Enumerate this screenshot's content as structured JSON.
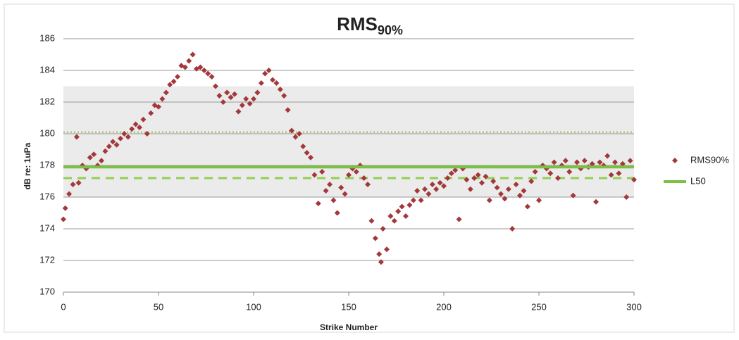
{
  "chart_data": {
    "type": "scatter",
    "title": "RMS",
    "title_subscript": "90%",
    "x_label": "Strike Number",
    "y_label": "dB re: 1uPa",
    "xlim": [
      0,
      300
    ],
    "xticks": [
      0,
      50,
      100,
      150,
      200,
      250,
      300
    ],
    "ylim": [
      170,
      186
    ],
    "yticks": [
      170,
      172,
      174,
      176,
      178,
      180,
      182,
      184,
      186
    ],
    "grid": true,
    "shaded_range": [
      176,
      183
    ],
    "reference_lines": [
      {
        "value": 180.1,
        "style": "dotted",
        "color": "#9bbb59"
      },
      {
        "value": 177.2,
        "style": "dashed",
        "color": "#92d050"
      }
    ],
    "series": [
      {
        "name": "RMS90%",
        "color": "#a3383a",
        "x": [
          0,
          1,
          3,
          5,
          7,
          8,
          10,
          12,
          14,
          16,
          18,
          20,
          22,
          24,
          26,
          28,
          30,
          32,
          34,
          36,
          38,
          40,
          42,
          44,
          46,
          48,
          50,
          52,
          54,
          56,
          58,
          60,
          62,
          64,
          66,
          68,
          70,
          72,
          74,
          76,
          78,
          80,
          82,
          84,
          86,
          88,
          90,
          92,
          94,
          96,
          98,
          100,
          102,
          104,
          106,
          108,
          110,
          112,
          114,
          116,
          118,
          120,
          122,
          124,
          126,
          128,
          130,
          132,
          134,
          136,
          138,
          140,
          142,
          144,
          146,
          148,
          150,
          152,
          154,
          156,
          158,
          160,
          162,
          164,
          166,
          167,
          168,
          170,
          172,
          174,
          176,
          178,
          180,
          182,
          184,
          186,
          188,
          190,
          192,
          194,
          196,
          198,
          200,
          202,
          204,
          206,
          208,
          210,
          212,
          214,
          216,
          218,
          220,
          222,
          224,
          226,
          228,
          230,
          232,
          234,
          236,
          238,
          240,
          242,
          244,
          246,
          248,
          250,
          252,
          254,
          256,
          258,
          260,
          262,
          264,
          266,
          268,
          270,
          272,
          274,
          276,
          278,
          280,
          282,
          284,
          286,
          288,
          290,
          292,
          294,
          296,
          298,
          300
        ],
        "values": [
          174.6,
          175.3,
          176.2,
          176.8,
          179.8,
          176.9,
          178,
          177.8,
          178.5,
          178.7,
          178,
          178.3,
          178.9,
          179.2,
          179.5,
          179.3,
          179.7,
          180,
          179.8,
          180.3,
          180.6,
          180.4,
          180.9,
          180,
          181.3,
          181.8,
          181.7,
          182.2,
          182.6,
          183.1,
          183.3,
          183.6,
          184.3,
          184.2,
          184.6,
          185,
          184.1,
          184.2,
          184,
          183.8,
          183.6,
          183,
          182.4,
          182,
          182.6,
          182.3,
          182.5,
          181.4,
          181.8,
          182.2,
          181.9,
          182.2,
          182.6,
          183.2,
          183.8,
          184,
          183.4,
          183.2,
          182.8,
          182.4,
          181.5,
          180.2,
          179.8,
          180,
          179.2,
          178.8,
          178.5,
          177.4,
          175.6,
          177.6,
          176.4,
          176.8,
          175.8,
          175,
          176.6,
          176.2,
          177.4,
          177.8,
          177.6,
          178,
          177.2,
          176.8,
          174.5,
          173.4,
          172.4,
          171.9,
          174,
          172.7,
          174.8,
          174.5,
          175.1,
          175.4,
          174.8,
          175.5,
          175.8,
          176.4,
          175.8,
          176.5,
          176.2,
          176.8,
          176.5,
          176.9,
          176.7,
          177.2,
          177.5,
          177.7,
          174.6,
          177.8,
          177.1,
          176.5,
          177.2,
          177.4,
          176.9,
          177.3,
          175.8,
          177,
          176.6,
          176.2,
          175.9,
          176.5,
          174,
          176.8,
          176.1,
          176.4,
          175.4,
          177,
          177.6,
          175.8,
          178,
          177.8,
          177.5,
          178.2,
          177.2,
          178,
          178.3,
          177.6,
          176.1,
          178.2,
          177.8,
          178.3,
          177.9,
          178.1,
          175.7,
          178.2,
          178,
          178.6,
          177.4,
          178.2,
          177.5,
          178.1,
          176,
          178.3,
          177.1
        ]
      },
      {
        "name": "L50",
        "color": "#7ac143",
        "line_value": 177.9
      }
    ]
  }
}
